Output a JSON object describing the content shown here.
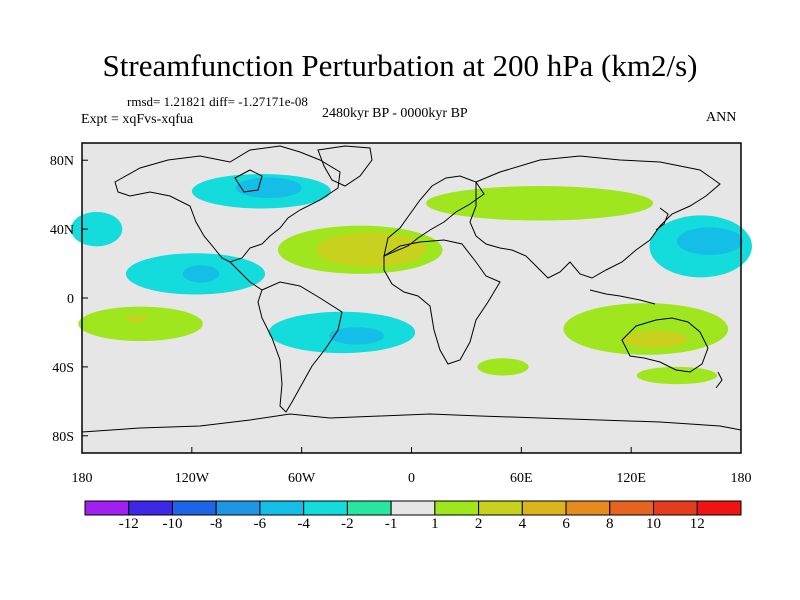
{
  "header": {
    "title": "Streamfunction Perturbation at 200 hPa (km2/s)",
    "stats": "rmsd= 1.21821 diff= -1.27171e-08",
    "period": "2480kyr BP - 0000kyr BP",
    "experiment": "Expt = xqFvs-xqfua",
    "season": "ANN"
  },
  "axes": {
    "lat_labels": [
      "80N",
      "40N",
      "0",
      "40S",
      "80S"
    ],
    "lon_labels": [
      "180",
      "120W",
      "60W",
      "0",
      "60E",
      "120E",
      "180"
    ]
  },
  "colorbar": {
    "labels": [
      "-12",
      "-10",
      "-8",
      "-6",
      "-4",
      "-2",
      "-1",
      "1",
      "2",
      "4",
      "6",
      "8",
      "10",
      "12"
    ],
    "colors": [
      "#a020f0",
      "#3c28e6",
      "#1e64e6",
      "#1e96e6",
      "#14bee6",
      "#14dcdc",
      "#28e6a0",
      "#e6e6e6",
      "#a0e61e",
      "#c8d21e",
      "#dcb41e",
      "#e68c1e",
      "#e6641e",
      "#e63c1e",
      "#f01414"
    ]
  },
  "field": {
    "regions": [
      {
        "name": "north-atlantic-negative",
        "lon": -82,
        "lat": 62,
        "rlon": 38,
        "rlat": 10,
        "level": -2
      },
      {
        "name": "north-atlantic-core",
        "lon": -78,
        "lat": 64,
        "rlon": 18,
        "rlat": 6,
        "level": -4
      },
      {
        "name": "north-pacific-negative",
        "lon": -172,
        "lat": 40,
        "rlon": 14,
        "rlat": 10,
        "level": -2
      },
      {
        "name": "east-pacific-negative",
        "lon": -118,
        "lat": 14,
        "rlon": 38,
        "rlat": 12,
        "level": -2
      },
      {
        "name": "east-pacific-core",
        "lon": -115,
        "lat": 14,
        "rlon": 10,
        "rlat": 5,
        "level": -4
      },
      {
        "name": "south-atlantic-negative",
        "lon": -38,
        "lat": -20,
        "rlon": 40,
        "rlat": 12,
        "level": -2
      },
      {
        "name": "south-atlantic-core",
        "lon": -30,
        "lat": -22,
        "rlon": 15,
        "rlat": 5,
        "level": -4
      },
      {
        "name": "west-pacific-negative",
        "lon": 158,
        "lat": 30,
        "rlon": 28,
        "rlat": 18,
        "level": -2
      },
      {
        "name": "west-pacific-core",
        "lon": 163,
        "lat": 33,
        "rlon": 18,
        "rlat": 8,
        "level": -4
      },
      {
        "name": "north-africa-positive",
        "lon": -28,
        "lat": 28,
        "rlon": 45,
        "rlat": 14,
        "level": 2
      },
      {
        "name": "north-africa-core",
        "lon": -22,
        "lat": 28,
        "rlon": 30,
        "rlat": 10,
        "level": 4
      },
      {
        "name": "asia-positive",
        "lon": 70,
        "lat": 55,
        "rlon": 62,
        "rlat": 10,
        "level": 2
      },
      {
        "name": "south-pacific-positive",
        "lon": -148,
        "lat": -15,
        "rlon": 34,
        "rlat": 10,
        "level": 2
      },
      {
        "name": "south-pacific-core",
        "lon": -150,
        "lat": -12,
        "rlon": 6,
        "rlat": 2,
        "level": 4
      },
      {
        "name": "australia-positive",
        "lon": 128,
        "lat": -18,
        "rlon": 45,
        "rlat": 15,
        "level": 2
      },
      {
        "name": "australia-core",
        "lon": 133,
        "lat": -24,
        "rlon": 18,
        "rlat": 5,
        "level": 4
      },
      {
        "name": "south-indian-positive",
        "lon": 50,
        "lat": -40,
        "rlon": 14,
        "rlat": 5,
        "level": 2
      },
      {
        "name": "south-of-australia-positive",
        "lon": 145,
        "lat": -45,
        "rlon": 22,
        "rlat": 5,
        "level": 2
      }
    ]
  }
}
